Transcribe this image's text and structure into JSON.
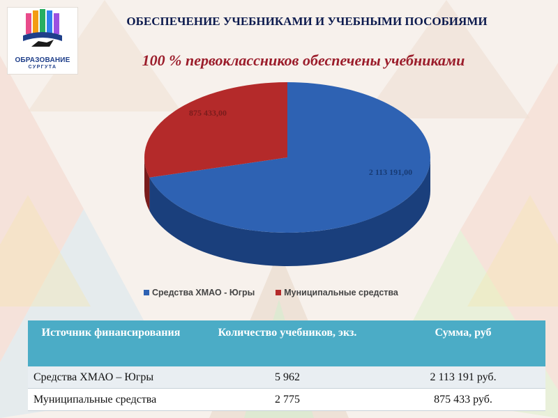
{
  "header": {
    "logo_line1": "ОБРАЗОВАНИЕ",
    "logo_line2": "СУРГУТА",
    "title": "ОБЕСПЕЧЕНИЕ УЧЕБНИКАМИ И УЧЕБНЫМИ ПОСОБИЯМИ",
    "subtitle": "100 % первоклассников обеспечены учебниками"
  },
  "chart_data": {
    "type": "pie",
    "categories": [
      "Средства ХМАО - Югры",
      "Муниципальные средства"
    ],
    "values": [
      2113191.0,
      875433.0
    ],
    "labels": [
      "2 113 191,00",
      "875 433,00"
    ],
    "colors": [
      "#2e62b3",
      "#b42a2a"
    ],
    "legend": "bottom"
  },
  "table": {
    "headers": [
      "Источник финансирования",
      "Количество учебников, экз.",
      "Сумма, руб"
    ],
    "rows": [
      [
        "Средства ХМАО – Югры",
        "5 962",
        "2 113 191 руб."
      ],
      [
        "Муниципальные средства",
        "2 775",
        "875 433 руб."
      ]
    ]
  }
}
